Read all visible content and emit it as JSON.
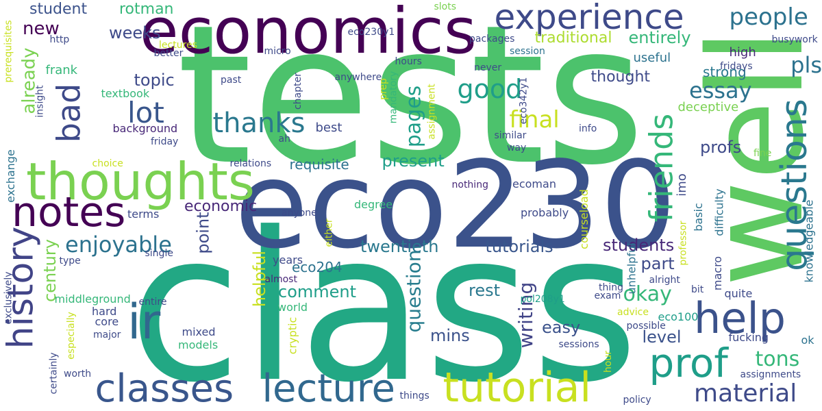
{
  "words": [
    {
      "text": "tests",
      "color": "#4cc26c"
    },
    {
      "text": "class",
      "color": "#22a884"
    },
    {
      "text": "eco230",
      "color": "#3b528b"
    },
    {
      "text": "well",
      "color": "#5ec962"
    },
    {
      "text": "economics",
      "color": "#440154"
    },
    {
      "text": "thoughts",
      "color": "#7ad151"
    },
    {
      "text": "experience",
      "color": "#3e4a89"
    },
    {
      "text": "classes",
      "color": "#39568c"
    },
    {
      "text": "lecture",
      "color": "#31688e"
    },
    {
      "text": "notes",
      "color": "#440154"
    },
    {
      "text": "ir",
      "color": "#31688e"
    },
    {
      "text": "history",
      "color": "#414487"
    },
    {
      "text": "help",
      "color": "#3b528b"
    },
    {
      "text": "prof",
      "color": "#1f9e89"
    },
    {
      "text": "tutorial",
      "color": "#c8e020"
    },
    {
      "text": "questions",
      "color": "#2a788e"
    },
    {
      "text": "friends",
      "color": "#35b779"
    },
    {
      "text": "material",
      "color": "#3e4a89"
    },
    {
      "text": "thanks",
      "color": "#2a788e"
    },
    {
      "text": "lot",
      "color": "#39568c"
    },
    {
      "text": "bad",
      "color": "#3e4a89"
    },
    {
      "text": "good",
      "color": "#1f9e89"
    },
    {
      "text": "people",
      "color": "#2c728e"
    },
    {
      "text": "enjoyable",
      "color": "#2c728e"
    },
    {
      "text": "essay",
      "color": "#2c728e"
    },
    {
      "text": "pls",
      "color": "#2c728e"
    },
    {
      "text": "okay",
      "color": "#35b779"
    },
    {
      "text": "final",
      "color": "#c8e020"
    },
    {
      "text": "new",
      "color": "#440154"
    },
    {
      "text": "student",
      "color": "#3b528b"
    },
    {
      "text": "rotman",
      "color": "#35b779"
    },
    {
      "text": "weeks",
      "color": "#3e4a89"
    },
    {
      "text": "entirely",
      "color": "#35b779"
    },
    {
      "text": "traditional",
      "color": "#addc30"
    },
    {
      "text": "topic",
      "color": "#3e4a89"
    },
    {
      "text": "already",
      "color": "#7ad151"
    },
    {
      "text": "pages",
      "color": "#1f9e89"
    },
    {
      "text": "profs",
      "color": "#3e4a89"
    },
    {
      "text": "part",
      "color": "#3e4a89"
    },
    {
      "text": "level",
      "color": "#3b528b"
    },
    {
      "text": "students",
      "color": "#482878"
    },
    {
      "text": "tons",
      "color": "#35b779"
    },
    {
      "text": "writing",
      "color": "#414487"
    },
    {
      "text": "question",
      "color": "#287d8e"
    },
    {
      "text": "twentieth",
      "color": "#2a788e"
    },
    {
      "text": "tutorials",
      "color": "#39568c"
    },
    {
      "text": "present",
      "color": "#1f9e89"
    },
    {
      "text": "requisite",
      "color": "#2c728e"
    },
    {
      "text": "economic",
      "color": "#482878"
    },
    {
      "text": "point",
      "color": "#3e4a89"
    },
    {
      "text": "helpful",
      "color": "#c8e020"
    },
    {
      "text": "century",
      "color": "#7ad151"
    },
    {
      "text": "comment",
      "color": "#1f9e89"
    },
    {
      "text": "rest",
      "color": "#2a788e"
    },
    {
      "text": "mins",
      "color": "#3b528b"
    },
    {
      "text": "easy",
      "color": "#3b528b"
    },
    {
      "text": "eco204",
      "color": "#2c728e"
    },
    {
      "text": "thought",
      "color": "#3e4a89"
    },
    {
      "text": "strong",
      "color": "#2a788e"
    },
    {
      "text": "useful",
      "color": "#2c728e"
    },
    {
      "text": "high",
      "color": "#482878"
    },
    {
      "text": "deceptive",
      "color": "#7ad151"
    },
    {
      "text": "imo",
      "color": "#3e4a89"
    },
    {
      "text": "unhelpful",
      "color": "#2c728e"
    },
    {
      "text": "basic",
      "color": "#2c728e"
    },
    {
      "text": "difficulty",
      "color": "#2c728e"
    },
    {
      "text": "knowledgeable",
      "color": "#2c728e"
    },
    {
      "text": "busywork",
      "color": "#3e4a89"
    },
    {
      "text": "fridays",
      "color": "#3e4a89"
    },
    {
      "text": "fine",
      "color": "#7ad151"
    },
    {
      "text": "ok",
      "color": "#2c728e"
    },
    {
      "text": "professor",
      "color": "#c8e020"
    },
    {
      "text": "bit",
      "color": "#3e4a89"
    },
    {
      "text": "alright",
      "color": "#3e4a89"
    },
    {
      "text": "macro",
      "color": "#3e4a89"
    },
    {
      "text": "quite",
      "color": "#3e4a89"
    },
    {
      "text": "fucking",
      "color": "#3e4a89"
    },
    {
      "text": "eco100",
      "color": "#1f9e89"
    },
    {
      "text": "advice",
      "color": "#c8e020"
    },
    {
      "text": "possible",
      "color": "#3e4a89"
    },
    {
      "text": "exam",
      "color": "#3e4a89"
    },
    {
      "text": "thing",
      "color": "#3e4a89"
    },
    {
      "text": "pol208y1",
      "color": "#1f9e89"
    },
    {
      "text": "sessions",
      "color": "#3e4a89"
    },
    {
      "text": "assignments",
      "color": "#3e4a89"
    },
    {
      "text": "policy",
      "color": "#3e4a89"
    },
    {
      "text": "hour",
      "color": "#c8e020"
    },
    {
      "text": "courseload",
      "color": "#c8e020"
    },
    {
      "text": "probably",
      "color": "#3e4a89"
    },
    {
      "text": "ecoman",
      "color": "#3e4a89"
    },
    {
      "text": "nothing",
      "color": "#482878"
    },
    {
      "text": "info",
      "color": "#3e4a89"
    },
    {
      "text": "similar",
      "color": "#3e4a89"
    },
    {
      "text": "way",
      "color": "#3e4a89"
    },
    {
      "text": "eco342y1",
      "color": "#3e4a89"
    },
    {
      "text": "session",
      "color": "#2c728e"
    },
    {
      "text": "packages",
      "color": "#3e4a89"
    },
    {
      "text": "never",
      "color": "#3e4a89"
    },
    {
      "text": "hours",
      "color": "#3e4a89"
    },
    {
      "text": "eco230y1",
      "color": "#3e4a89"
    },
    {
      "text": "slots",
      "color": "#7ad151"
    },
    {
      "text": "lectures",
      "color": "#c8e020"
    },
    {
      "text": "better",
      "color": "#3e4a89"
    },
    {
      "text": "micro",
      "color": "#3e4a89"
    },
    {
      "text": "http",
      "color": "#3e4a89"
    },
    {
      "text": "anywhere",
      "color": "#3e4a89"
    },
    {
      "text": "prep",
      "color": "#c8e020"
    },
    {
      "text": "assignment",
      "color": "#c8e020"
    },
    {
      "text": "chapter",
      "color": "#3e4a89"
    },
    {
      "text": "mandatory",
      "color": "#35b779"
    },
    {
      "text": "ah",
      "color": "#3e4a89"
    },
    {
      "text": "frank",
      "color": "#35b779"
    },
    {
      "text": "past",
      "color": "#3e4a89"
    },
    {
      "text": "textbook",
      "color": "#35b779"
    },
    {
      "text": "background",
      "color": "#482878"
    },
    {
      "text": "friday",
      "color": "#3e4a89"
    },
    {
      "text": "best",
      "color": "#3e4a89"
    },
    {
      "text": "relations",
      "color": "#3e4a89"
    },
    {
      "text": "choice",
      "color": "#c8e020"
    },
    {
      "text": "prerequisites",
      "color": "#c8e020"
    },
    {
      "text": "insight",
      "color": "#3e4a89"
    },
    {
      "text": "exchange",
      "color": "#2c728e"
    },
    {
      "text": "terms",
      "color": "#3e4a89"
    },
    {
      "text": "anyone",
      "color": "#3e4a89"
    },
    {
      "text": "either",
      "color": "#c8e020"
    },
    {
      "text": "degree",
      "color": "#35b779"
    },
    {
      "text": "years",
      "color": "#3e4a89"
    },
    {
      "text": "almost",
      "color": "#482878"
    },
    {
      "text": "world",
      "color": "#35b779"
    },
    {
      "text": "cryptic",
      "color": "#c8e020"
    },
    {
      "text": "middleground",
      "color": "#35b779"
    },
    {
      "text": "exclusively",
      "color": "#3e4a89"
    },
    {
      "text": "type",
      "color": "#3e4a89"
    },
    {
      "text": "single",
      "color": "#3e4a89"
    },
    {
      "text": "hard",
      "color": "#3e4a89"
    },
    {
      "text": "entire",
      "color": "#3e4a89"
    },
    {
      "text": "core",
      "color": "#3e4a89"
    },
    {
      "text": "mixed",
      "color": "#3e4a89"
    },
    {
      "text": "major",
      "color": "#3e4a89"
    },
    {
      "text": "models",
      "color": "#35b779"
    },
    {
      "text": "especially",
      "color": "#c8e020"
    },
    {
      "text": "certainly",
      "color": "#3e4a89"
    },
    {
      "text": "worth",
      "color": "#3e4a89"
    },
    {
      "text": "things",
      "color": "#3e4a89"
    }
  ]
}
